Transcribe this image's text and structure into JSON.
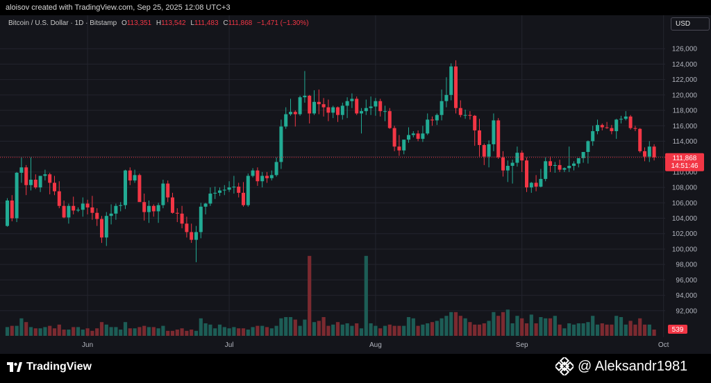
{
  "caption": "aloisov created with TradingView.com, Sep 25, 2025 12:08 UTC+3",
  "legend": {
    "symbol": "Bitcoin / U.S. Dollar · 1D · Bitstamp",
    "o_label": "O",
    "o": "113,351",
    "h_label": "H",
    "h": "113,542",
    "l_label": "L",
    "l": "111,483",
    "c_label": "C",
    "c": "111,868",
    "change": "−1,471 (−1.30%)"
  },
  "currency_button": "USD",
  "price_tag": {
    "price": "111,868",
    "countdown": "14:51:46"
  },
  "volume_tag": "539",
  "brand": "TradingView",
  "watermark": "@ Aleksandr1981",
  "colors": {
    "up": "#22ab94",
    "down": "#f23645",
    "up_vol": "#1d5d56",
    "down_vol": "#7b2a30",
    "background": "#14151b",
    "grid": "#23252e"
  },
  "chart_data": {
    "type": "candlestick",
    "title": "Bitcoin / U.S. Dollar · 1D · Bitstamp",
    "ylim": [
      90000,
      128000
    ],
    "y_ticks": [
      "92,000",
      "94,000",
      "96,000",
      "98,000",
      "100,000",
      "102,000",
      "104,000",
      "106,000",
      "108,000",
      "110,000",
      "112,000",
      "114,000",
      "116,000",
      "118,000",
      "120,000",
      "122,000",
      "124,000",
      "126,000"
    ],
    "x_ticks": [
      "Jun",
      "Jul",
      "Aug",
      "Sep",
      "Oct"
    ],
    "x_tick_dates": [
      "2025-06-01",
      "2025-07-01",
      "2025-08-01",
      "2025-09-01",
      "2025-10-01"
    ],
    "start_date": "2025-05-15",
    "grid": true,
    "candles": [
      [
        103000,
        106600,
        102900,
        106300
      ],
      [
        106300,
        107000,
        103600,
        104000
      ],
      [
        104000,
        110000,
        103500,
        109900
      ],
      [
        109900,
        111900,
        108600,
        110600
      ],
      [
        110600,
        110900,
        107000,
        108300
      ],
      [
        108300,
        111900,
        107600,
        109000
      ],
      [
        109000,
        109700,
        107800,
        108000
      ],
      [
        108000,
        109500,
        107400,
        109500
      ],
      [
        109500,
        110300,
        108900,
        109700
      ],
      [
        109700,
        109900,
        107100,
        108600
      ],
      [
        108600,
        109500,
        107000,
        107500
      ],
      [
        107500,
        108800,
        105300,
        105600
      ],
      [
        105600,
        106300,
        104000,
        104100
      ],
      [
        104100,
        105900,
        103300,
        105600
      ],
      [
        105600,
        106800,
        104500,
        105000
      ],
      [
        105000,
        105400,
        104800,
        105100
      ],
      [
        105100,
        106700,
        104200,
        105900
      ],
      [
        105900,
        106400,
        104500,
        105400
      ],
      [
        105400,
        106900,
        103800,
        104700
      ],
      [
        104700,
        105300,
        103000,
        103900
      ],
      [
        103900,
        104300,
        100800,
        101500
      ],
      [
        101500,
        104800,
        100400,
        104300
      ],
      [
        104300,
        105800,
        103200,
        104600
      ],
      [
        104600,
        105900,
        103800,
        105600
      ],
      [
        105600,
        106100,
        104900,
        105700
      ],
      [
        105700,
        110300,
        105200,
        110200
      ],
      [
        110200,
        110600,
        108300,
        108900
      ],
      [
        108900,
        110300,
        108600,
        109600
      ],
      [
        109600,
        109800,
        106200,
        106100
      ],
      [
        106100,
        107200,
        103700,
        104800
      ],
      [
        104800,
        106300,
        103400,
        105600
      ],
      [
        105600,
        105800,
        104200,
        104900
      ],
      [
        104900,
        106000,
        103400,
        105700
      ],
      [
        105700,
        109000,
        105300,
        108500
      ],
      [
        108500,
        108900,
        106100,
        106700
      ],
      [
        106700,
        107300,
        104600,
        104700
      ],
      [
        104700,
        105300,
        103500,
        104600
      ],
      [
        104600,
        105600,
        102700,
        103300
      ],
      [
        103300,
        104200,
        101500,
        102200
      ],
      [
        102200,
        103300,
        100800,
        101200
      ],
      [
        101200,
        103000,
        98300,
        102200
      ],
      [
        102200,
        106000,
        101400,
        105500
      ],
      [
        105500,
        106000,
        104500,
        105900
      ],
      [
        105900,
        108000,
        105600,
        107200
      ],
      [
        107200,
        108100,
        106500,
        107300
      ],
      [
        107300,
        108000,
        106900,
        107600
      ],
      [
        107600,
        108300,
        107000,
        107700
      ],
      [
        107700,
        108800,
        107400,
        108000
      ],
      [
        108000,
        109500,
        107200,
        108100
      ],
      [
        108100,
        108600,
        106700,
        107300
      ],
      [
        107300,
        108700,
        105500,
        105700
      ],
      [
        105700,
        109800,
        105500,
        109500
      ],
      [
        109500,
        110500,
        109300,
        110200
      ],
      [
        110200,
        110600,
        108200,
        108800
      ],
      [
        108800,
        110000,
        108000,
        109500
      ],
      [
        109500,
        110000,
        108600,
        109200
      ],
      [
        109200,
        110200,
        108900,
        109600
      ],
      [
        109600,
        111900,
        109400,
        111300
      ],
      [
        111300,
        116800,
        110400,
        115900
      ],
      [
        115900,
        118400,
        115600,
        117500
      ],
      [
        117500,
        119500,
        117300,
        117800
      ],
      [
        117800,
        118000,
        115900,
        117500
      ],
      [
        117500,
        119900,
        117300,
        119700
      ],
      [
        119700,
        123100,
        119000,
        119900
      ],
      [
        119900,
        120000,
        116300,
        117600
      ],
      [
        117600,
        120600,
        117400,
        119100
      ],
      [
        119100,
        120700,
        117500,
        118800
      ],
      [
        118800,
        119600,
        117200,
        118400
      ],
      [
        118400,
        119400,
        116600,
        117700
      ],
      [
        117700,
        118600,
        117000,
        118400
      ],
      [
        118400,
        118500,
        116500,
        117400
      ],
      [
        117400,
        119000,
        116800,
        118600
      ],
      [
        118600,
        119700,
        117000,
        119200
      ],
      [
        119200,
        120200,
        118300,
        119500
      ],
      [
        119500,
        119800,
        117400,
        117600
      ],
      [
        117600,
        118300,
        115000,
        117900
      ],
      [
        117900,
        119400,
        117400,
        118300
      ],
      [
        118300,
        119800,
        117400,
        118500
      ],
      [
        118500,
        119600,
        117300,
        119200
      ],
      [
        119200,
        119500,
        117200,
        117900
      ],
      [
        117900,
        118600,
        116600,
        117900
      ],
      [
        117900,
        118300,
        115600,
        115700
      ],
      [
        115700,
        116000,
        112700,
        113300
      ],
      [
        113300,
        114800,
        112100,
        112800
      ],
      [
        112800,
        114100,
        112300,
        114200
      ],
      [
        114200,
        115800,
        113800,
        114800
      ],
      [
        114800,
        115300,
        114500,
        115000
      ],
      [
        115000,
        115400,
        114000,
        114300
      ],
      [
        114300,
        116000,
        113900,
        115000
      ],
      [
        115000,
        117600,
        114800,
        116800
      ],
      [
        116800,
        117200,
        116000,
        116700
      ],
      [
        116700,
        117600,
        116100,
        117400
      ],
      [
        117400,
        120700,
        116700,
        119200
      ],
      [
        119200,
        122300,
        118400,
        120000
      ],
      [
        120000,
        124100,
        119300,
        123700
      ],
      [
        123700,
        124500,
        117600,
        118300
      ],
      [
        118300,
        119300,
        117100,
        117400
      ],
      [
        117400,
        118100,
        116900,
        117400
      ],
      [
        117400,
        117900,
        116800,
        117300
      ],
      [
        117300,
        117400,
        113400,
        115400
      ],
      [
        115400,
        116900,
        112000,
        113500
      ],
      [
        113500,
        113700,
        110900,
        112000
      ],
      [
        112000,
        114100,
        110600,
        113600
      ],
      [
        113600,
        117600,
        112700,
        116700
      ],
      [
        116700,
        117000,
        111700,
        111900
      ],
      [
        111900,
        112700,
        109400,
        110200
      ],
      [
        110200,
        111500,
        108700,
        110800
      ],
      [
        110800,
        111600,
        108500,
        111200
      ],
      [
        111200,
        113300,
        110700,
        112500
      ],
      [
        112500,
        112800,
        110000,
        111500
      ],
      [
        111500,
        111900,
        107400,
        108000
      ],
      [
        108000,
        108700,
        107300,
        108600
      ],
      [
        108600,
        109600,
        107500,
        108100
      ],
      [
        108100,
        110400,
        108000,
        109100
      ],
      [
        109100,
        111900,
        108800,
        111400
      ],
      [
        111400,
        112000,
        110000,
        110800
      ],
      [
        110800,
        111300,
        109900,
        110900
      ],
      [
        110900,
        111600,
        110000,
        110300
      ],
      [
        110300,
        110600,
        110000,
        110500
      ],
      [
        110500,
        113300,
        110000,
        110800
      ],
      [
        110800,
        111400,
        110200,
        111100
      ],
      [
        111100,
        111600,
        110600,
        111800
      ],
      [
        111800,
        112500,
        111200,
        112600
      ],
      [
        112600,
        114100,
        111100,
        114000
      ],
      [
        114000,
        116000,
        113400,
        115300
      ],
      [
        115300,
        116800,
        114900,
        116100
      ],
      [
        116100,
        116300,
        115400,
        115800
      ],
      [
        115800,
        116500,
        115600,
        115700
      ],
      [
        115700,
        116100,
        114900,
        115300
      ],
      [
        115300,
        116900,
        114300,
        116800
      ],
      [
        116800,
        117300,
        116300,
        116900
      ],
      [
        116900,
        117900,
        116700,
        117200
      ],
      [
        117200,
        117400,
        115500,
        115700
      ],
      [
        115700,
        116000,
        115300,
        115600
      ],
      [
        115600,
        115700,
        112500,
        112700
      ],
      [
        112700,
        113200,
        111400,
        112000
      ],
      [
        112000,
        114000,
        111300,
        113300
      ],
      [
        113300,
        113600,
        111500,
        111900
      ]
    ],
    "volumes": [
      7,
      8,
      8,
      14,
      11,
      7,
      6,
      6,
      7,
      8,
      6,
      9,
      5,
      5,
      7,
      7,
      5,
      6,
      4,
      6,
      11,
      9,
      7,
      7,
      5,
      11,
      6,
      6,
      7,
      8,
      7,
      7,
      6,
      8,
      4,
      4,
      5,
      6,
      4,
      5,
      4,
      14,
      10,
      9,
      6,
      9,
      7,
      6,
      7,
      6,
      6,
      5,
      7,
      8,
      8,
      7,
      6,
      8,
      14,
      15,
      15,
      13,
      8,
      13,
      64,
      11,
      12,
      15,
      8,
      9,
      11,
      9,
      10,
      8,
      10,
      6,
      64,
      10,
      8,
      6,
      8,
      9,
      8,
      8,
      8,
      15,
      14,
      8,
      9,
      10,
      11,
      12,
      14,
      16,
      19,
      19,
      16,
      14,
      11,
      9,
      9,
      10,
      12,
      19,
      16,
      19,
      21,
      10,
      16,
      14,
      10,
      17,
      10,
      15,
      14,
      14,
      16,
      9,
      6,
      10,
      9,
      10,
      10,
      11,
      16,
      9,
      10,
      9,
      9,
      16,
      15,
      9,
      12,
      9,
      14,
      9,
      9,
      5
    ]
  }
}
